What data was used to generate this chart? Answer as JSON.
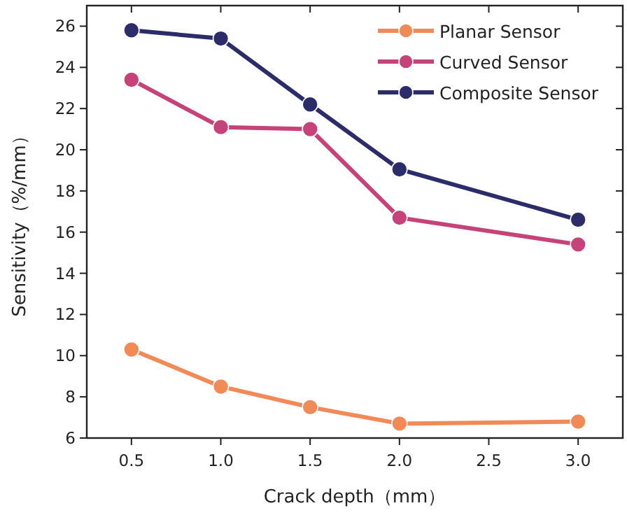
{
  "chart_data": {
    "type": "line",
    "xlabel": "Crack depth（mm）",
    "ylabel": "Sensitivity（%/mm）",
    "x": [
      0.5,
      1.0,
      1.5,
      2.0,
      3.0
    ],
    "series": [
      {
        "name": "Planar Sensor",
        "color": "#f28a58",
        "values": [
          10.3,
          8.5,
          7.5,
          6.7,
          6.8
        ]
      },
      {
        "name": "Curved Sensor",
        "color": "#c54378",
        "values": [
          23.4,
          21.1,
          21.0,
          16.7,
          15.4
        ]
      },
      {
        "name": "Composite Sensor",
        "color": "#2d2c6b",
        "values": [
          25.8,
          25.4,
          22.2,
          19.05,
          16.6
        ]
      }
    ],
    "xlim": [
      0.25,
      3.25
    ],
    "xticks": [
      {
        "value": 0.5,
        "label": "0.5"
      },
      {
        "value": 1.0,
        "label": "1.0"
      },
      {
        "value": 1.5,
        "label": "1.5"
      },
      {
        "value": 2.0,
        "label": "2.0"
      },
      {
        "value": 2.5,
        "label": "2.5"
      },
      {
        "value": 3.0,
        "label": "3.0"
      }
    ],
    "ylim": [
      6,
      27
    ],
    "yticks": [
      6,
      8,
      10,
      12,
      14,
      16,
      18,
      20,
      22,
      24,
      26
    ],
    "legend": "top right",
    "marker": "circle",
    "line_style": "solid"
  }
}
